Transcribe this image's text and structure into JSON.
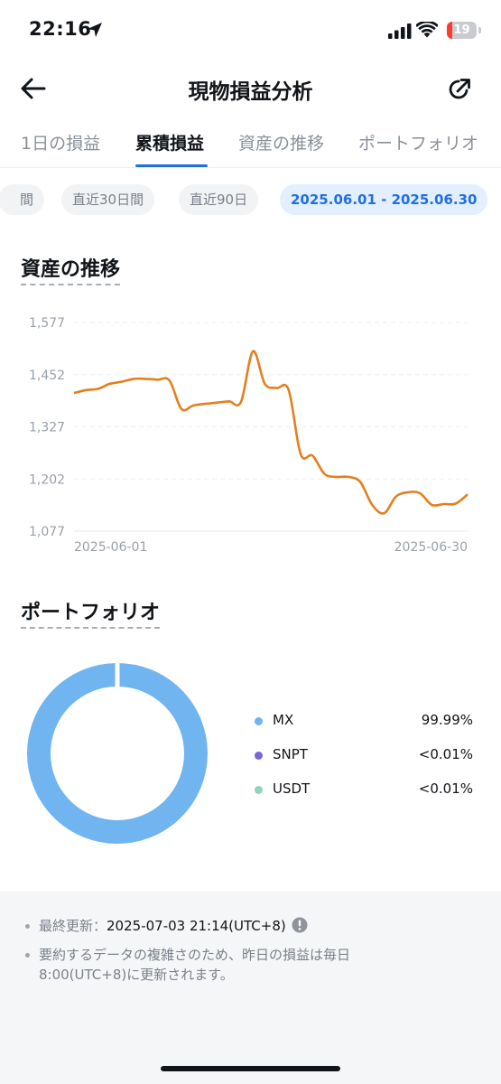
{
  "status_bar": {
    "time": "22:16",
    "battery_level": "19",
    "battery_fraction": 0.19,
    "icons": [
      "location-arrow-icon",
      "cellular-signal-icon",
      "wifi-icon",
      "battery-icon"
    ]
  },
  "header": {
    "title": "現物損益分析",
    "back_icon": "arrow-left-icon",
    "share_icon": "share-icon"
  },
  "tabs": [
    {
      "label": "1日の損益",
      "active": false
    },
    {
      "label": "累積損益",
      "active": true
    },
    {
      "label": "資産の推移",
      "active": false
    },
    {
      "label": "ポートフォリオ",
      "active": false
    }
  ],
  "filters": [
    {
      "label": "間",
      "active": false
    },
    {
      "label": "直近30日間",
      "active": false
    },
    {
      "label": "直近90日",
      "active": false
    },
    {
      "label": "2025.06.01 - 2025.06.30",
      "active": true
    }
  ],
  "asset_trend": {
    "title": "資産の推移"
  },
  "chart_data": {
    "type": "line",
    "title": "",
    "xlabel": "",
    "ylabel": "",
    "y_ticks": [
      "1,577",
      "1,452",
      "1,327",
      "1,202",
      "1,077"
    ],
    "x_ticks": [
      "2025-06-01",
      "2025-06-30"
    ],
    "ylim": [
      1077,
      1577
    ],
    "grid": true,
    "line_color": "#e2801f",
    "series": [
      {
        "values": [
          1408,
          1415,
          1418,
          1430,
          1435,
          1442,
          1442,
          1440,
          1438,
          1370,
          1378,
          1382,
          1385,
          1388,
          1387,
          1508,
          1430,
          1420,
          1415,
          1262,
          1258,
          1214,
          1207,
          1207,
          1195,
          1140,
          1120,
          1160,
          1170,
          1168,
          1140,
          1142,
          1143,
          1165
        ]
      }
    ]
  },
  "portfolio": {
    "title": "ポートフォリオ",
    "items": [
      {
        "name": "MX",
        "value": "99.99%",
        "color": "#70b4f0"
      },
      {
        "name": "SNPT",
        "value": "<0.01%",
        "color": "#7b63de"
      },
      {
        "name": "USDT",
        "value": "<0.01%",
        "color": "#8fd6bf"
      }
    ]
  },
  "notes": {
    "last_updated_label": "最終更新：",
    "last_updated_value": "2025-07-03 21:14(UTC+8)",
    "info_icon": "info-circle-icon",
    "disclaimer_line1": "要約するデータの複雑さのため、昨日の損益は毎日",
    "disclaimer_line2": "8:00(UTC+8)に更新されます。"
  }
}
